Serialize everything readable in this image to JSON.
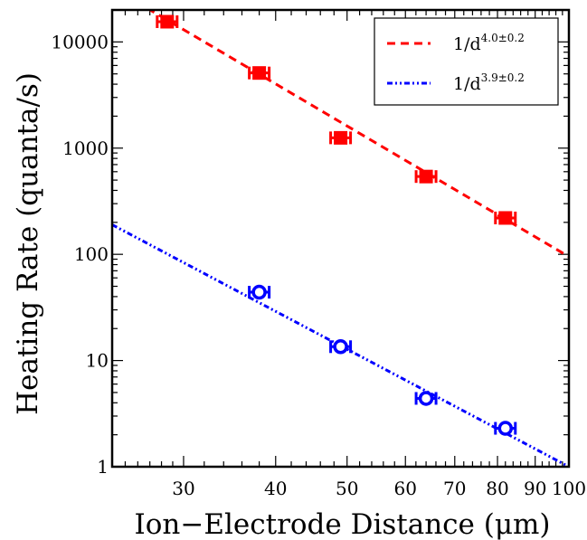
{
  "chart_data": {
    "type": "scatter",
    "title": "",
    "xlabel": "Ion−Electrode Distance (μm)",
    "ylabel": "Heating Rate (quanta/s)",
    "x_scale": "log",
    "y_scale": "log",
    "xlim": [
      24,
      100
    ],
    "ylim": [
      1,
      20000
    ],
    "x_ticks": [
      30,
      40,
      50,
      60,
      70,
      80,
      90,
      100
    ],
    "x_tick_labels": [
      "30",
      "40",
      "50",
      "60",
      "70",
      "80",
      "90",
      "100"
    ],
    "y_ticks": [
      1,
      10,
      100,
      1000,
      10000
    ],
    "y_tick_labels": [
      "1",
      "10",
      "100",
      "1000",
      "10000"
    ],
    "grid": false,
    "legend_position": "top-right",
    "series": [
      {
        "name": "1/d^(4.0±0.2)",
        "legend_base": "1/d",
        "legend_exponent": "4.0±0.2",
        "marker": "filled-square",
        "line_style": "dashed",
        "color": "#ff0000",
        "x": [
          28.5,
          38,
          49,
          64,
          82
        ],
        "y": [
          15500,
          5100,
          1250,
          540,
          220
        ],
        "fit_line": {
          "x": [
            24,
            100
          ],
          "y": [
            32500,
            95
          ]
        }
      },
      {
        "name": "1/d^(3.9±0.2)",
        "legend_base": "1/d",
        "legend_exponent": "3.9±0.2",
        "marker": "open-circle",
        "line_style": "dash-dot-dot",
        "color": "#0000ff",
        "x": [
          38,
          49,
          64,
          82
        ],
        "y": [
          44,
          13.5,
          4.4,
          2.3
        ],
        "fit_line": {
          "x": [
            24,
            100
          ],
          "y": [
            190,
            1.0
          ]
        }
      }
    ]
  }
}
